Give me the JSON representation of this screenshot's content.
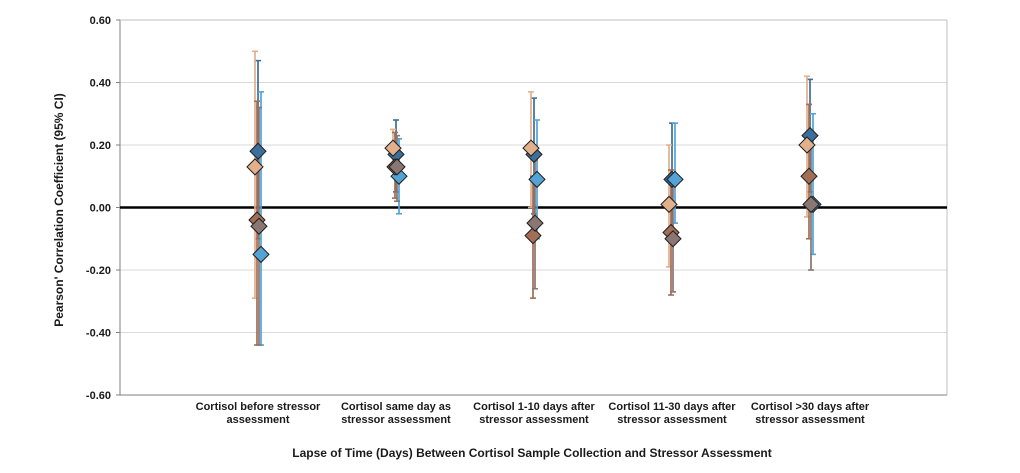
{
  "chart_data": {
    "type": "scatter",
    "xlabel": "Lapse of Time (Days) Between Cortisol Sample Collection and Stressor Assessment",
    "ylabel": "Pearson' Correlation Coefficient (95% CI)",
    "ylim": [
      -0.6,
      0.6
    ],
    "yticks": [
      "0.60",
      "0.40",
      "0.20",
      "0.00",
      "-0.20",
      "-0.40",
      "-0.60"
    ],
    "ytick_values": [
      0.6,
      0.4,
      0.2,
      0.0,
      -0.2,
      -0.4,
      -0.6
    ],
    "grid": true,
    "categories": [
      [
        "Cortisol before stressor",
        "assessment"
      ],
      [
        "Cortisol same day as",
        "stressor assessment"
      ],
      [
        "Cortisol 1-10 days after",
        "stressor assessment"
      ],
      [
        "Cortisol 11-30 days after",
        "stressor assessment"
      ],
      [
        "Cortisol >30 days after",
        "stressor assessment"
      ]
    ],
    "series": [
      {
        "color": "#3c6f9c",
        "points": [
          {
            "y": 0.18,
            "lo": -0.1,
            "hi": 0.47
          },
          {
            "y": 0.17,
            "lo": 0.05,
            "hi": 0.28
          },
          {
            "y": 0.17,
            "lo": -0.02,
            "hi": 0.35
          },
          {
            "y": 0.09,
            "lo": -0.1,
            "hi": 0.27
          },
          {
            "y": 0.23,
            "lo": 0.05,
            "hi": 0.41
          }
        ]
      },
      {
        "color": "#e3b08c",
        "points": [
          {
            "y": 0.13,
            "lo": -0.29,
            "hi": 0.5
          },
          {
            "y": 0.19,
            "lo": 0.12,
            "hi": 0.25
          },
          {
            "y": 0.19,
            "lo": 0.0,
            "hi": 0.37
          },
          {
            "y": 0.01,
            "lo": -0.19,
            "hi": 0.2
          },
          {
            "y": 0.2,
            "lo": -0.03,
            "hi": 0.42
          }
        ]
      },
      {
        "color": "#54a3d6",
        "points": [
          {
            "y": -0.15,
            "lo": -0.44,
            "hi": 0.37
          },
          {
            "y": 0.1,
            "lo": -0.02,
            "hi": 0.22
          },
          {
            "y": 0.09,
            "lo": -0.1,
            "hi": 0.28
          },
          {
            "y": 0.09,
            "lo": -0.05,
            "hi": 0.27
          },
          {
            "y": 0.01,
            "lo": -0.15,
            "hi": 0.3
          }
        ]
      },
      {
        "color": "#a26e55",
        "points": [
          {
            "y": -0.04,
            "lo": -0.44,
            "hi": 0.34
          },
          {
            "y": 0.13,
            "lo": 0.03,
            "hi": 0.24
          },
          {
            "y": -0.09,
            "lo": -0.29,
            "hi": 0.1
          },
          {
            "y": -0.08,
            "lo": -0.28,
            "hi": 0.12
          },
          {
            "y": 0.1,
            "lo": -0.1,
            "hi": 0.33
          }
        ]
      },
      {
        "color": "#8a7672",
        "points": [
          {
            "y": -0.06,
            "lo": -0.44,
            "hi": 0.32
          },
          {
            "y": 0.13,
            "lo": 0.02,
            "hi": 0.23
          },
          {
            "y": -0.05,
            "lo": -0.26,
            "hi": 0.15
          },
          {
            "y": -0.1,
            "lo": -0.27,
            "hi": 0.08
          },
          {
            "y": 0.01,
            "lo": -0.2,
            "hi": 0.22
          }
        ]
      }
    ]
  }
}
